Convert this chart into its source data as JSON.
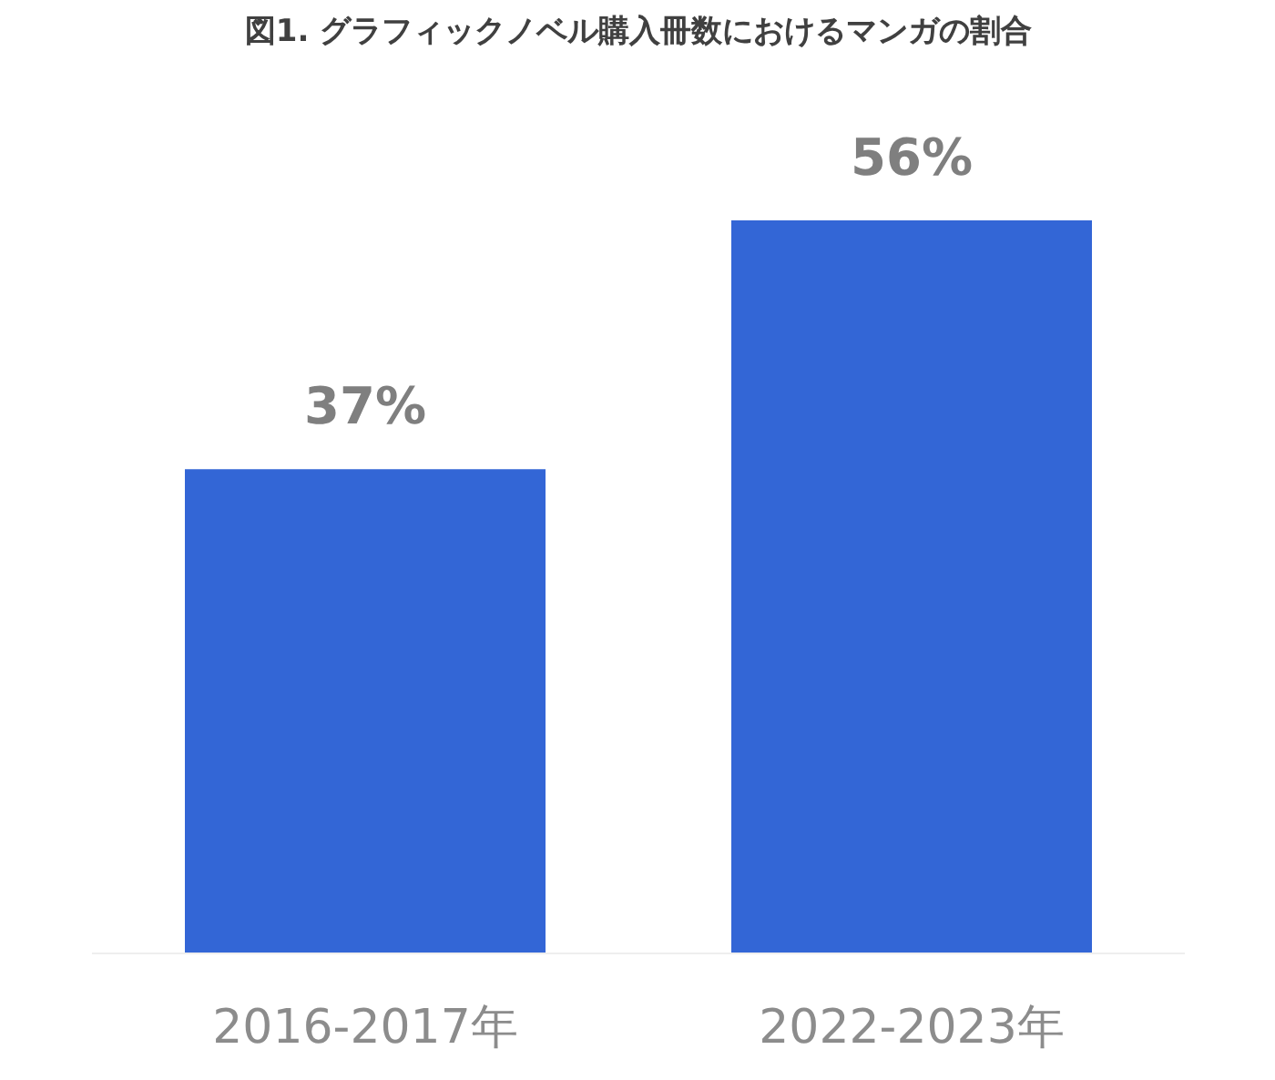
{
  "chart_data": {
    "type": "bar",
    "title": "図1. グラフィックノベル購入冊数におけるマンガの割合",
    "categories": [
      "2016-2017年",
      "2022-2023年"
    ],
    "values": [
      37,
      56
    ],
    "value_labels": [
      "37%",
      "56%"
    ],
    "color": "#3366d6",
    "grid": false
  }
}
